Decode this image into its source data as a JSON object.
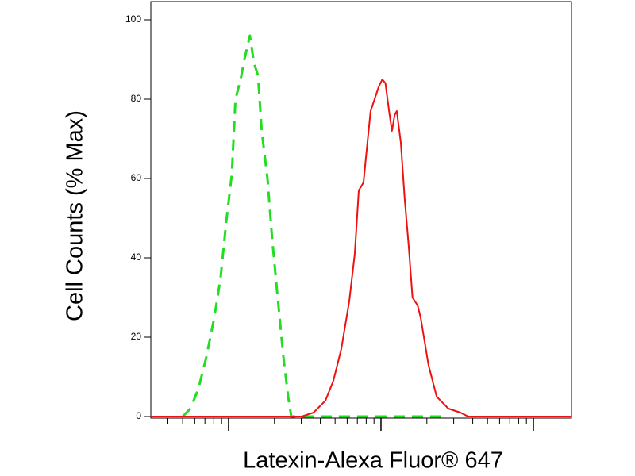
{
  "chart_data": {
    "type": "line",
    "x_label": "Latexin-Alexa Fluor® 647",
    "y_label": "Cell Counts (% Max)",
    "xscale": "log",
    "xlim": [
      3.09,
      1778
    ],
    "xticks": [
      10,
      100,
      1000
    ],
    "ylim": [
      0,
      100
    ],
    "yticks": [
      0,
      20,
      40,
      60,
      80,
      100
    ],
    "series": [
      {
        "color": "#22dd22",
        "dash": true,
        "x": [
          5.0,
          5.62,
          6.34,
          7.15,
          8.06,
          8.87,
          9.65,
          10.5,
          11.1,
          12.0,
          12.7,
          13.8,
          14.7,
          15.6,
          16.5,
          18.0,
          19.3,
          21.0,
          22.9,
          24.6,
          25.8,
          261
        ],
        "values": [
          0,
          2,
          7,
          15,
          25,
          35,
          49,
          61,
          80,
          85,
          90,
          96,
          89,
          86,
          72,
          60,
          45,
          30,
          15,
          5,
          0,
          0
        ]
      },
      {
        "color": "#ee1111",
        "dash": false,
        "x": [
          3.09,
          21.0,
          30.1,
          36.1,
          43.2,
          48.7,
          54.9,
          61.9,
          67.3,
          71.5,
          76.8,
          80.5,
          85.5,
          90.8,
          96.4,
          102,
          107,
          113,
          118,
          123,
          127,
          135,
          143,
          152,
          161,
          174,
          182,
          205,
          232,
          277,
          332,
          374,
          1778
        ],
        "values": [
          0,
          0,
          0,
          1,
          4,
          9,
          17,
          29,
          41,
          57,
          59,
          67,
          77,
          80,
          83,
          85,
          84,
          77,
          72,
          76,
          77,
          69,
          55,
          43,
          30,
          28,
          25,
          13,
          5,
          2,
          1,
          0,
          0
        ]
      }
    ]
  }
}
